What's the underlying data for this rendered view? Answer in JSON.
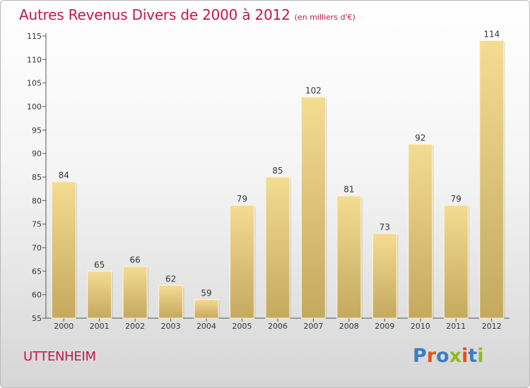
{
  "title": "Autres Revenus Divers de 2000 à 2012",
  "unit": "(en milliers d'€)",
  "town": "UTTENHEIM",
  "logo": {
    "text": "Proxiti",
    "colors": [
      "#3a7cc7",
      "#e0531c",
      "#3a7cc7",
      "#8bbd1e",
      "#e0531c",
      "#3a7cc7",
      "#8bbd1e"
    ]
  },
  "colors": {
    "bar_top": "#f4dc92",
    "bar_bottom": "#c4a95f",
    "title": "#c2184d"
  },
  "chart_data": {
    "type": "bar",
    "categories": [
      "2000",
      "2001",
      "2002",
      "2003",
      "2004",
      "2005",
      "2006",
      "2007",
      "2008",
      "2009",
      "2010",
      "2011",
      "2012"
    ],
    "values": [
      84,
      65,
      66,
      62,
      59,
      79,
      85,
      102,
      81,
      73,
      92,
      79,
      114
    ],
    "ylim": [
      55,
      115
    ],
    "yticks": [
      55,
      60,
      65,
      70,
      75,
      80,
      85,
      90,
      95,
      100,
      105,
      110,
      115
    ],
    "grid": false,
    "legend": "none"
  }
}
